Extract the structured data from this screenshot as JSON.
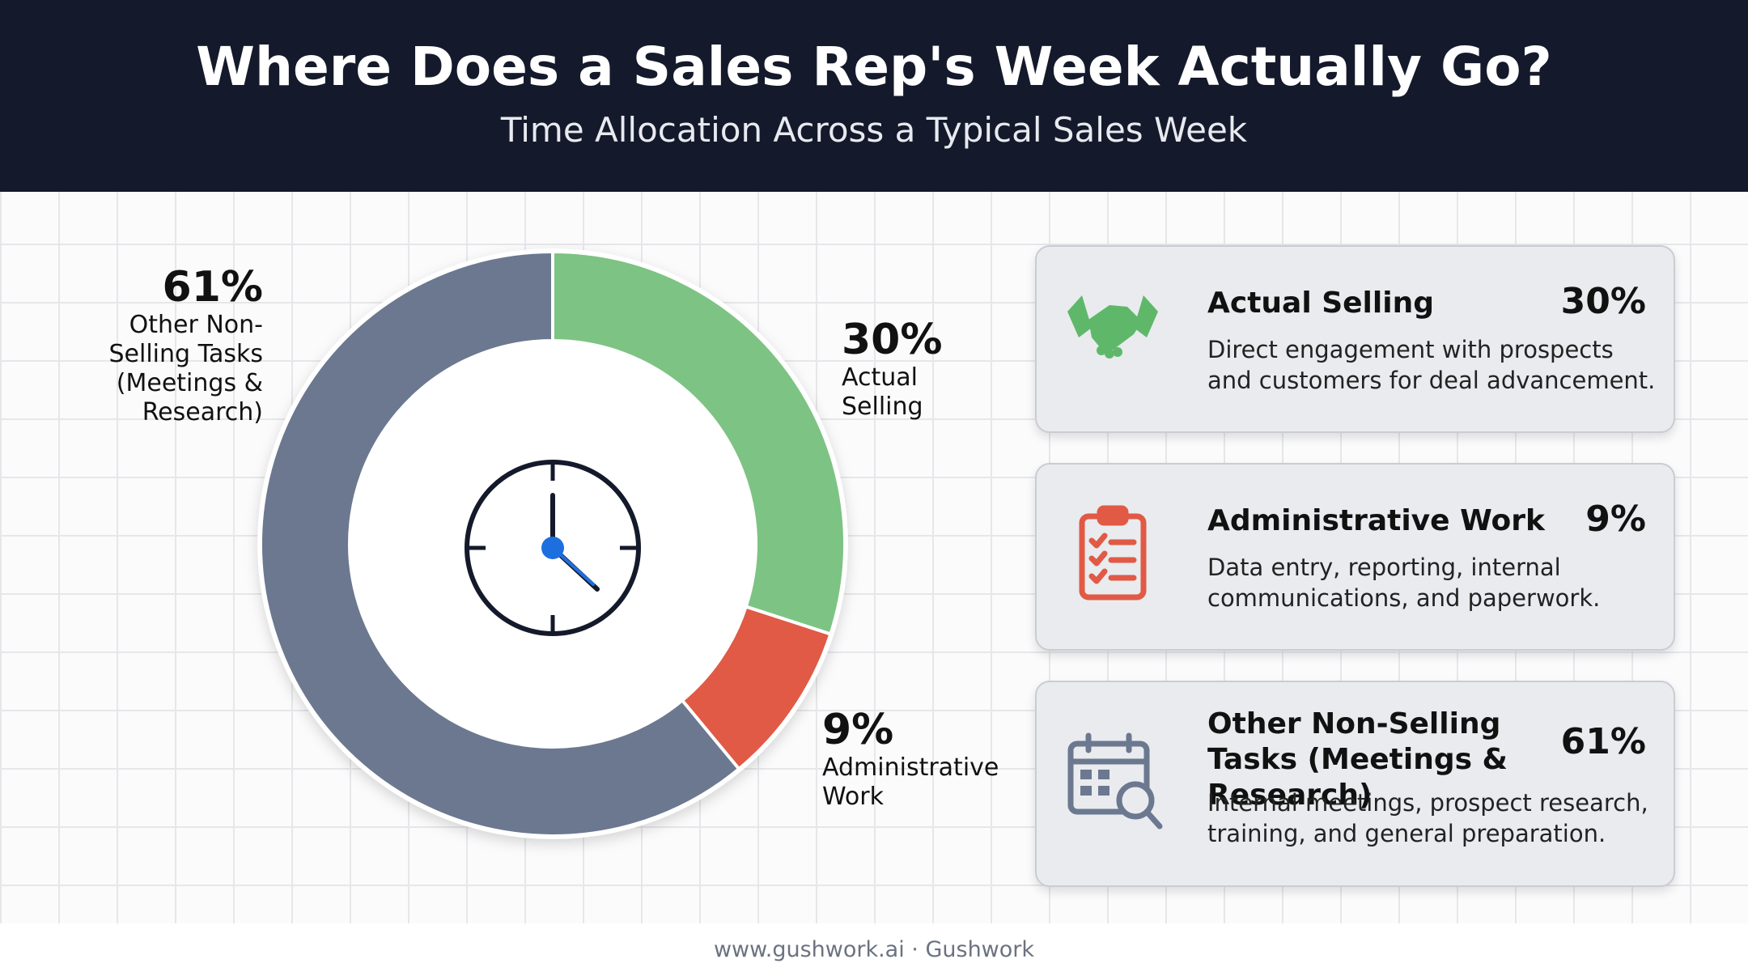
{
  "chart_data": {
    "type": "pie",
    "donut": true,
    "title": "Where Does a Sales Rep's Week Actually Go?",
    "subtitle": "Time Allocation Across a Typical Sales Week",
    "categories": [
      "Actual Selling",
      "Administrative Work",
      "Other Non-Selling Tasks (Meetings & Research)"
    ],
    "values": [
      30,
      9,
      61
    ],
    "value_labels": [
      "30%",
      "9%",
      "61%"
    ],
    "colors": [
      "#7dc383",
      "#e05a45",
      "#6b7890"
    ]
  },
  "cards": [
    {
      "description": "Direct engagement with prospects and customers for deal advancement."
    },
    {
      "description": "Data entry, reporting, internal communications, and paperwork."
    },
    {
      "description": "Internal meetings, prospect research, training, and general preparation."
    }
  ],
  "footer": "www.gushwork.ai · Gushwork"
}
